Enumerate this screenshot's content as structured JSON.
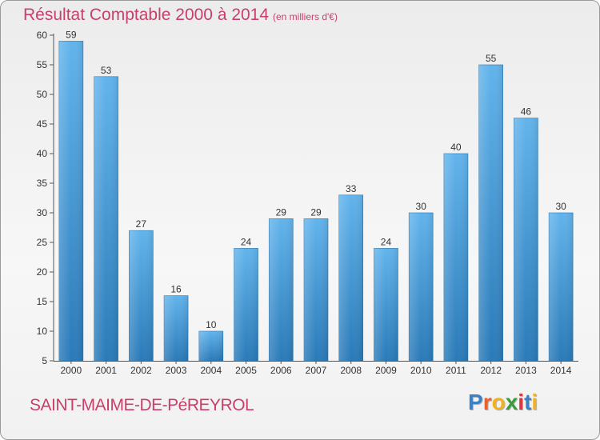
{
  "title": "Résultat Comptable 2000 à 2014",
  "subtitle": "(en milliers d'€)",
  "commune": "SAINT-MAIME-DE-PéREYROL",
  "logo": {
    "letters": [
      "P",
      "r",
      "o",
      "x",
      "i",
      "t",
      "i"
    ],
    "colors": [
      "#3b82c4",
      "#e8632b",
      "#f2b21c",
      "#3b9a3b",
      "#d63a3a",
      "#3b82c4",
      "#f2b21c"
    ]
  },
  "colors": {
    "bar_top": "#62b4ec",
    "bar_bottom": "#2a7ab8",
    "text": "#c8406a",
    "axis": "#555555"
  },
  "chart_data": {
    "type": "bar",
    "title": "Résultat Comptable 2000 à 2014",
    "xlabel": "",
    "ylabel": "",
    "ylim": [
      5,
      60
    ],
    "yticks": [
      5,
      10,
      15,
      20,
      25,
      30,
      35,
      40,
      45,
      50,
      55,
      60
    ],
    "grid": false,
    "categories": [
      "2000",
      "2001",
      "2002",
      "2003",
      "2004",
      "2005",
      "2006",
      "2007",
      "2008",
      "2009",
      "2010",
      "2011",
      "2012",
      "2013",
      "2014"
    ],
    "values": [
      59,
      53,
      27,
      16,
      10,
      24,
      29,
      29,
      33,
      24,
      30,
      40,
      55,
      46,
      30
    ]
  }
}
